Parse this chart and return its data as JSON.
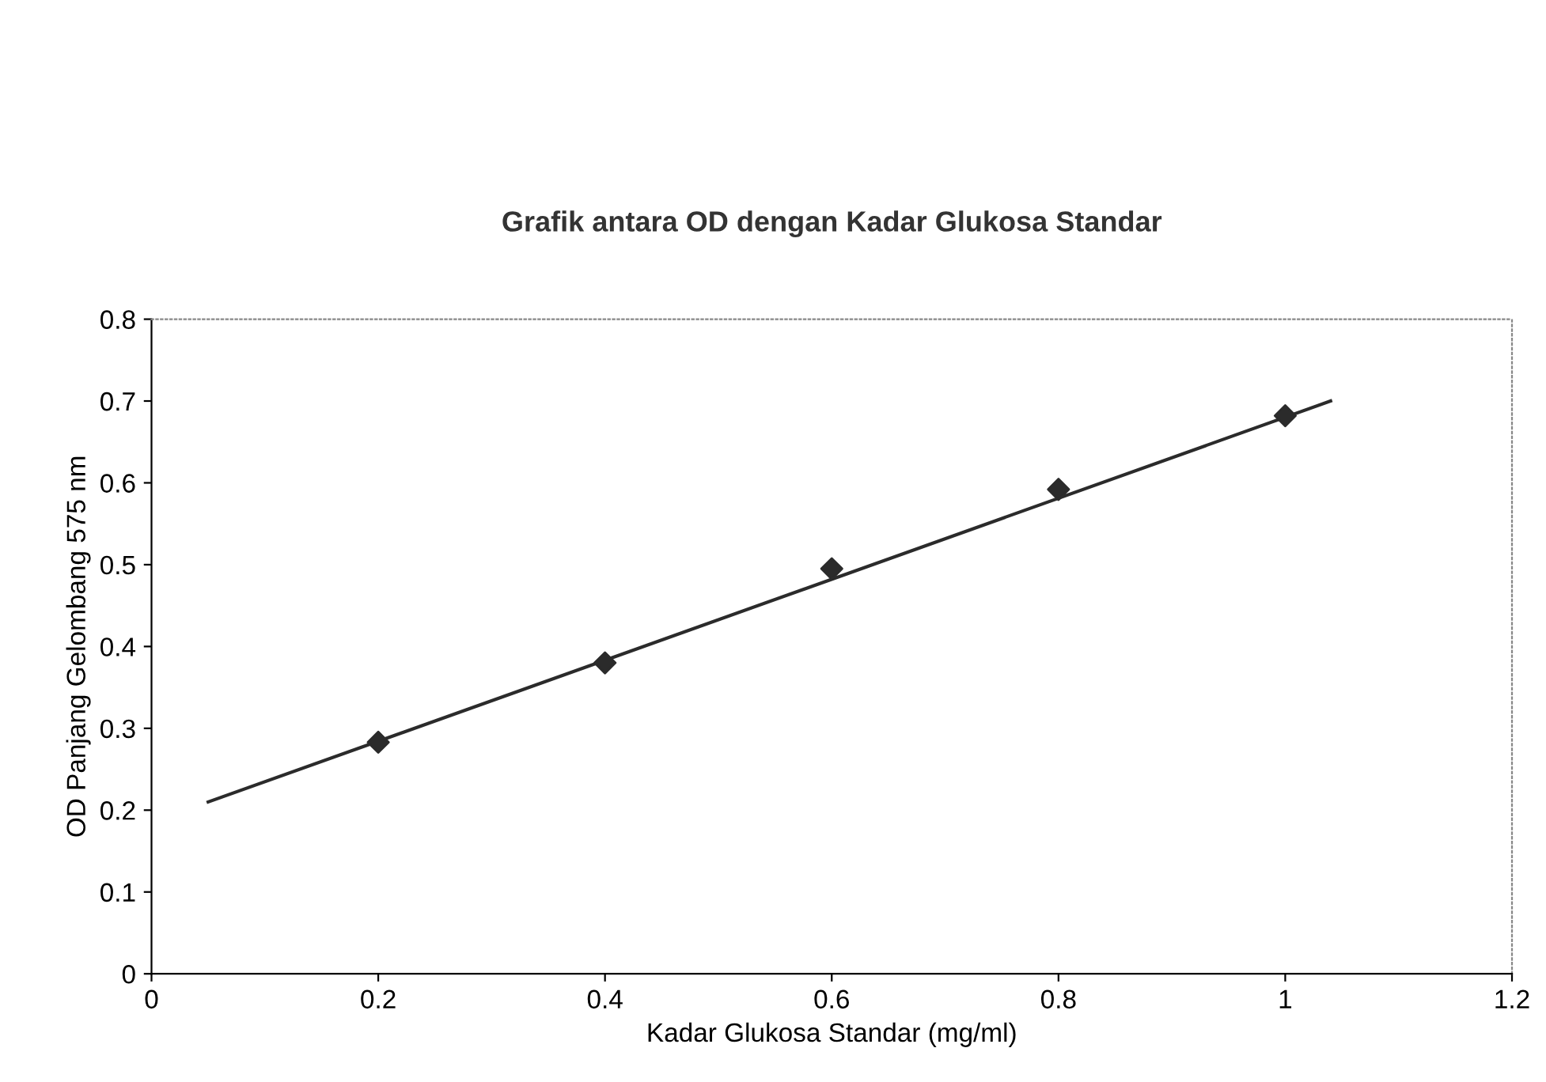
{
  "chart_data": {
    "type": "scatter",
    "title": "Grafik antara OD dengan Kadar Glukosa Standar",
    "xlabel": "Kadar Glukosa Standar (mg/ml)",
    "ylabel": "OD Panjang Gelombang 575 nm",
    "x": [
      0.2,
      0.4,
      0.6,
      0.8,
      1.0
    ],
    "series": [
      {
        "color": "#2b2b2b",
        "marker": "diamond",
        "values": [
          0.283,
          0.38,
          0.495,
          0.592,
          0.682
        ]
      },
      {
        "type": "line",
        "color": "#2b2b2b",
        "marker": "none",
        "line_style": "solid",
        "x": [
          0.05,
          1.04
        ],
        "values": [
          0.21,
          0.7
        ]
      }
    ],
    "xlim": [
      0,
      1.2
    ],
    "xticks": [
      0,
      0.2,
      0.4,
      0.6,
      0.8,
      1,
      1.2
    ],
    "ylim": [
      0,
      0.8
    ],
    "yticks": [
      0,
      0.1,
      0.2,
      0.3,
      0.4,
      0.5,
      0.6,
      0.7,
      0.8
    ],
    "grid": false,
    "legend": false
  }
}
